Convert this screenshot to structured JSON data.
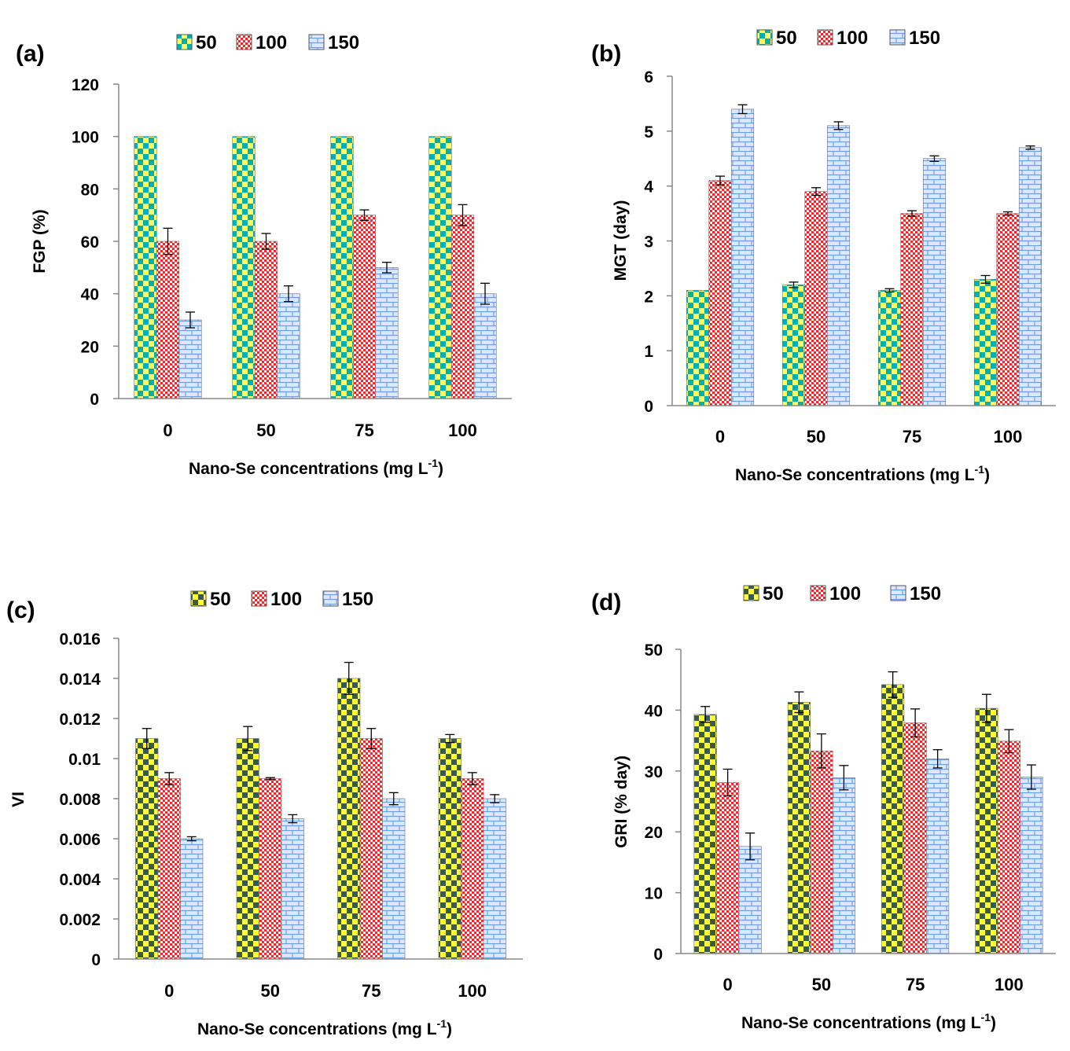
{
  "colors": {
    "s50_light": "#ffff66",
    "s50_dark": "#00b0b0",
    "s100_light": "#ffffff",
    "s100_dark": "#ff2222",
    "s150_light": "#dde8ff",
    "s150_dark": "#6a9fe6",
    "c_s50_light": "#ffff33",
    "c_s50_dark": "#3a5a48"
  },
  "chart_data": [
    {
      "type": "bar",
      "panel_label": "(a)",
      "categories": [
        "0",
        "50",
        "75",
        "100"
      ],
      "series": [
        {
          "name": "50",
          "values": [
            100,
            100,
            100,
            100
          ],
          "errors": [
            0,
            0,
            0,
            0
          ]
        },
        {
          "name": "100",
          "values": [
            60,
            60,
            70,
            70
          ],
          "errors": [
            5,
            3,
            2,
            4
          ]
        },
        {
          "name": "150",
          "values": [
            30,
            40,
            50,
            40
          ],
          "errors": [
            3,
            3,
            2,
            4
          ]
        }
      ],
      "yticks": [
        "0",
        "20",
        "40",
        "60",
        "80",
        "100",
        "120"
      ],
      "ylim": [
        0,
        120
      ],
      "ylabel": "FGP (%)",
      "xlabel": "Nano-Se concentrations (mg L",
      "xlabel_sup": "-1",
      "xlabel_end": ")"
    },
    {
      "type": "bar",
      "panel_label": "(b)",
      "categories": [
        "0",
        "50",
        "75",
        "100"
      ],
      "series": [
        {
          "name": "50",
          "values": [
            2.1,
            2.2,
            2.1,
            2.3
          ],
          "errors": [
            0,
            0.05,
            0.03,
            0.07
          ]
        },
        {
          "name": "100",
          "values": [
            4.1,
            3.9,
            3.5,
            3.5
          ],
          "errors": [
            0.08,
            0.07,
            0.05,
            0.03
          ]
        },
        {
          "name": "150",
          "values": [
            5.4,
            5.1,
            4.5,
            4.7
          ],
          "errors": [
            0.08,
            0.07,
            0.05,
            0.03
          ]
        }
      ],
      "yticks": [
        "0",
        "1",
        "2",
        "3",
        "4",
        "5",
        "6"
      ],
      "ylim": [
        0,
        6
      ],
      "ylabel": "MGT (day)",
      "xlabel": "Nano-Se concentrations (mg L",
      "xlabel_sup": "-1",
      "xlabel_end": ")"
    },
    {
      "type": "bar",
      "panel_label": "(c)",
      "categories": [
        "0",
        "50",
        "75",
        "100"
      ],
      "series": [
        {
          "name": "50",
          "values": [
            0.011,
            0.011,
            0.014,
            0.011
          ],
          "errors": [
            0.0005,
            0.0006,
            0.0008,
            0.0002
          ]
        },
        {
          "name": "100",
          "values": [
            0.009,
            0.009,
            0.011,
            0.009
          ],
          "errors": [
            0.0003,
            5e-05,
            0.0005,
            0.0003
          ]
        },
        {
          "name": "150",
          "values": [
            0.006,
            0.007,
            0.008,
            0.008
          ],
          "errors": [
            0.0001,
            0.0002,
            0.0003,
            0.0002
          ]
        }
      ],
      "yticks": [
        "0",
        "0.002",
        "0.004",
        "0.006",
        "0.008",
        "0.01",
        "0.012",
        "0.014",
        "0.016"
      ],
      "ylim": [
        0,
        0.016
      ],
      "ylabel": "VI",
      "xlabel": "Nano-Se concentrations (mg L",
      "xlabel_sup": "-1",
      "xlabel_end": ")"
    },
    {
      "type": "bar",
      "panel_label": "(d)",
      "categories": [
        "0",
        "50",
        "75",
        "100"
      ],
      "series": [
        {
          "name": "50",
          "values": [
            39.3,
            41.3,
            44.2,
            40.3
          ],
          "errors": [
            1.3,
            1.7,
            2.1,
            2.3
          ]
        },
        {
          "name": "100",
          "values": [
            28.1,
            33.3,
            37.9,
            34.9
          ],
          "errors": [
            2.2,
            2.8,
            2.3,
            1.9
          ]
        },
        {
          "name": "150",
          "values": [
            17.6,
            28.9,
            32.0,
            29.0
          ],
          "errors": [
            2.2,
            2.0,
            1.5,
            2.0
          ]
        }
      ],
      "yticks": [
        "0",
        "10",
        "20",
        "30",
        "40",
        "50"
      ],
      "ylim": [
        0,
        50
      ],
      "ylabel": "GRI (% day)",
      "xlabel": "Nano-Se concentrations (mg L",
      "xlabel_sup": "-1",
      "xlabel_end": ")"
    }
  ]
}
